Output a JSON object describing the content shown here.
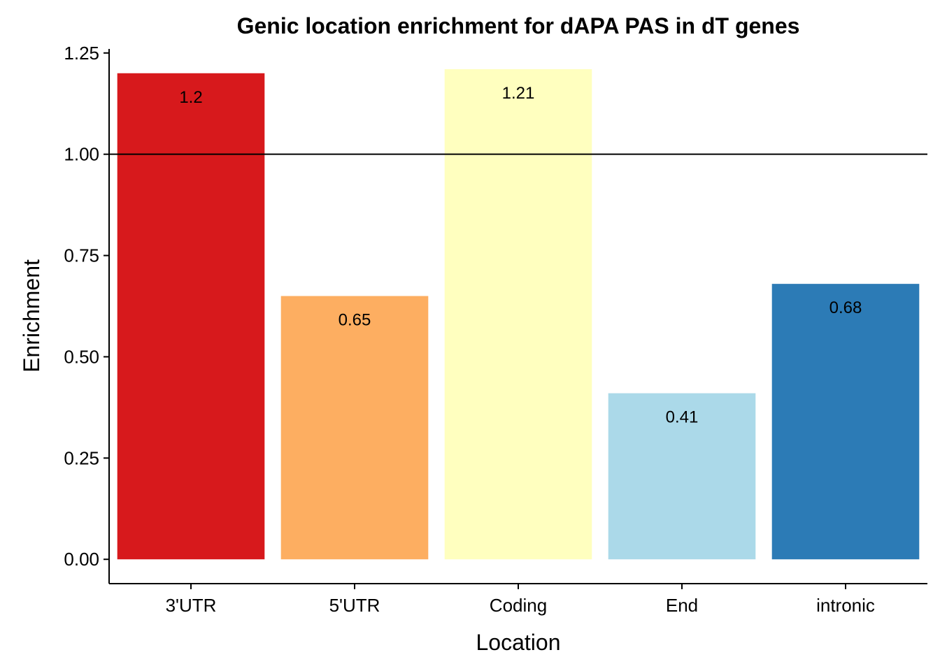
{
  "chart_data": {
    "type": "bar",
    "title": "Genic location enrichment for dAPA PAS in dT genes",
    "xlabel": "Location",
    "ylabel": "Enrichment",
    "categories": [
      "3'UTR",
      "5'UTR",
      "Coding",
      "End",
      "intronic"
    ],
    "values": [
      1.2,
      0.65,
      1.21,
      0.41,
      0.68
    ],
    "value_labels": [
      "1.2",
      "0.65",
      "1.21",
      "0.41",
      "0.68"
    ],
    "colors": [
      "#d7191c",
      "#fdae61",
      "#ffffbf",
      "#abd9e9",
      "#2c7bb6"
    ],
    "ylim": [
      -0.06,
      1.26
    ],
    "yticks": [
      0,
      0.25,
      0.5,
      0.75,
      1.0,
      1.25
    ],
    "ytick_labels": [
      "0.00",
      "0.25",
      "0.50",
      "0.75",
      "1.00",
      "1.25"
    ],
    "reference_line": 1.0,
    "grid": false,
    "legend": "none"
  }
}
